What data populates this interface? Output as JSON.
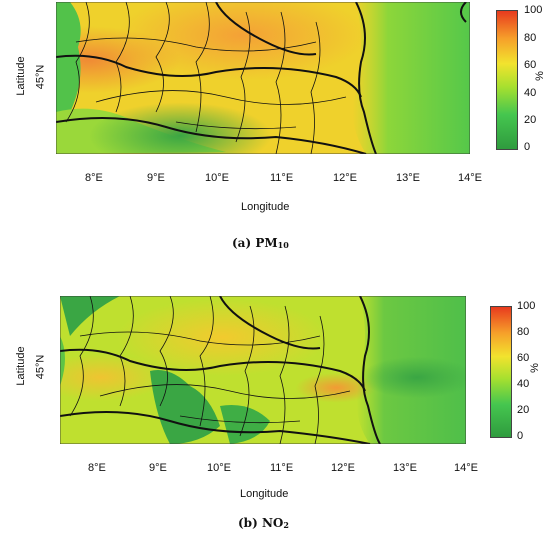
{
  "panels": [
    {
      "caption_label": "(a)",
      "caption_main": "PM",
      "caption_sub": "10",
      "ylabel": "Latitude",
      "xlabel": "Longitude",
      "lat_tick": "45°N",
      "lon_ticks": [
        "8°E",
        "9°E",
        "10°E",
        "11°E",
        "12°E",
        "13°E",
        "14°E"
      ],
      "colorbar_ticks": [
        "100",
        "80",
        "60",
        "40",
        "20",
        "0"
      ],
      "colorbar_unit": "%"
    },
    {
      "caption_label": "(b)",
      "caption_main": "NO",
      "caption_sub": "2",
      "ylabel": "Latitude",
      "xlabel": "Longitude",
      "lat_tick": "45°N",
      "lon_ticks": [
        "8°E",
        "9°E",
        "10°E",
        "11°E",
        "12°E",
        "13°E",
        "14°E"
      ],
      "colorbar_ticks": [
        "100",
        "80",
        "60",
        "40",
        "20",
        "0"
      ],
      "colorbar_unit": "%"
    }
  ],
  "colors": {
    "low": "#2f9b3e",
    "mid": "#a7e02f",
    "high": "#e83a1e"
  }
}
